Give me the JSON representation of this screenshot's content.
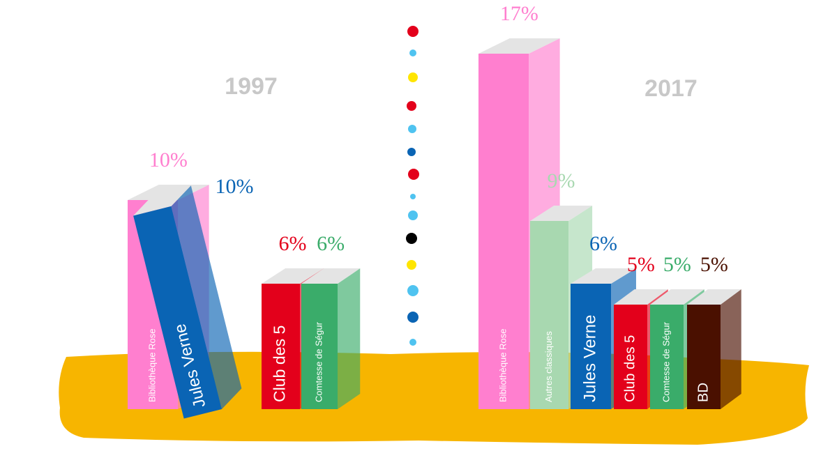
{
  "chart_data": [
    {
      "type": "bar",
      "title": "1997",
      "categories": [
        "Bibliothèque Rose",
        "Jules Verne",
        "Club des 5",
        "Comtesse de Ségur"
      ],
      "values": [
        10,
        10,
        6,
        6
      ],
      "value_labels": [
        "10%",
        "10%",
        "6%",
        "6%"
      ],
      "colors": [
        "#ff7fcf",
        "#0a64b4",
        "#e3001b",
        "#3aac6a"
      ]
    },
    {
      "type": "bar",
      "title": "2017",
      "categories": [
        "Bibliothèque Rose",
        "Autres classiques",
        "Jules Verne",
        "Club des 5",
        "Comtesse de Ségur",
        "BD"
      ],
      "values": [
        17,
        9,
        6,
        5,
        5,
        5
      ],
      "value_labels": [
        "17%",
        "9%",
        "6%",
        "5%",
        "5%",
        "5%"
      ],
      "colors": [
        "#ff7fcf",
        "#a8d8b0",
        "#0a64b4",
        "#e3001b",
        "#3aac6a",
        "#4a1000"
      ]
    }
  ]
}
